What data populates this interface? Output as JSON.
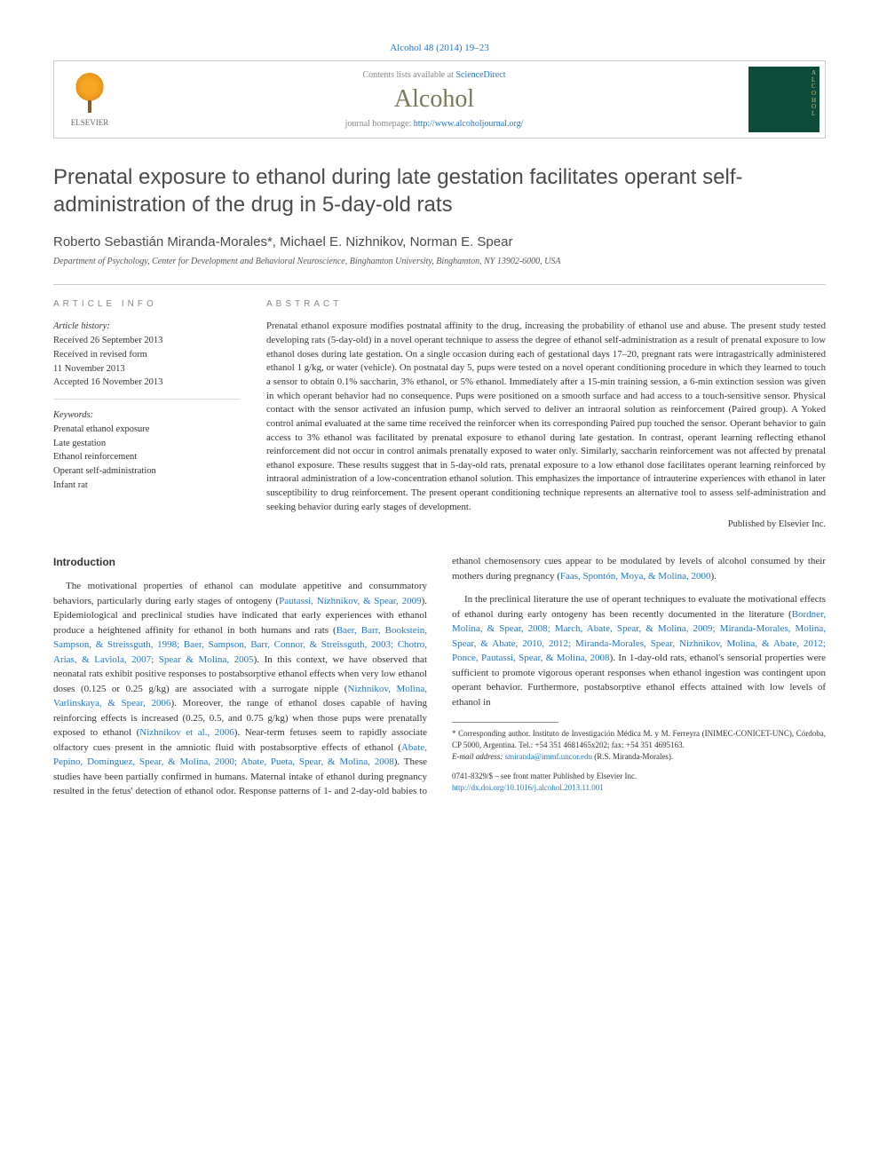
{
  "header": {
    "citation": "Alcohol 48 (2014) 19–23",
    "contents_prefix": "Contents lists available at ",
    "contents_link": "ScienceDirect",
    "journal_name": "Alcohol",
    "homepage_prefix": "journal homepage: ",
    "homepage_url": "http://www.alcoholjournal.org/",
    "publisher": "ELSEVIER",
    "cover_letters": "A\nL\nC\nO\nH\nO\nL"
  },
  "article": {
    "title": "Prenatal exposure to ethanol during late gestation facilitates operant self-administration of the drug in 5-day-old rats",
    "authors": "Roberto Sebastián Miranda-Morales*, Michael E. Nizhnikov, Norman E. Spear",
    "affiliation": "Department of Psychology, Center for Development and Behavioral Neuroscience, Binghamton University, Binghamton, NY 13902-6000, USA"
  },
  "info": {
    "section_label": "ARTICLE INFO",
    "history_label": "Article history:",
    "history": "Received 26 September 2013\nReceived in revised form\n11 November 2013\nAccepted 16 November 2013",
    "keywords_label": "Keywords:",
    "keywords": "Prenatal ethanol exposure\nLate gestation\nEthanol reinforcement\nOperant self-administration\nInfant rat"
  },
  "abstract": {
    "section_label": "ABSTRACT",
    "text": "Prenatal ethanol exposure modifies postnatal affinity to the drug, increasing the probability of ethanol use and abuse. The present study tested developing rats (5-day-old) in a novel operant technique to assess the degree of ethanol self-administration as a result of prenatal exposure to low ethanol doses during late gestation. On a single occasion during each of gestational days 17–20, pregnant rats were intragastrically administered ethanol 1 g/kg, or water (vehicle). On postnatal day 5, pups were tested on a novel operant conditioning procedure in which they learned to touch a sensor to obtain 0.1% saccharin, 3% ethanol, or 5% ethanol. Immediately after a 15-min training session, a 6-min extinction session was given in which operant behavior had no consequence. Pups were positioned on a smooth surface and had access to a touch-sensitive sensor. Physical contact with the sensor activated an infusion pump, which served to deliver an intraoral solution as reinforcement (Paired group). A Yoked control animal evaluated at the same time received the reinforcer when its corresponding Paired pup touched the sensor. Operant behavior to gain access to 3% ethanol was facilitated by prenatal exposure to ethanol during late gestation. In contrast, operant learning reflecting ethanol reinforcement did not occur in control animals prenatally exposed to water only. Similarly, saccharin reinforcement was not affected by prenatal ethanol exposure. These results suggest that in 5-day-old rats, prenatal exposure to a low ethanol dose facilitates operant learning reinforced by intraoral administration of a low-concentration ethanol solution. This emphasizes the importance of intrauterine experiences with ethanol in later susceptibility to drug reinforcement. The present operant conditioning technique represents an alternative tool to assess self-administration and seeking behavior during early stages of development.",
    "publisher_note": "Published by Elsevier Inc."
  },
  "body": {
    "intro_heading": "Introduction",
    "p1a": "The motivational properties of ethanol can modulate appetitive and consummatory behaviors, particularly during early stages of ontogeny (",
    "p1_ref1": "Pautassi, Nizhnikov, & Spear, 2009",
    "p1b": "). Epidemiological and preclinical studies have indicated that early experiences with ethanol produce a heightened affinity for ethanol in both humans and rats (",
    "p1_ref2": "Baer, Barr, Bookstein, Sampson, & Streissguth, 1998; Baer, Sampson, Barr, Connor, & Streissguth, 2003; Chotro, Arias, & Laviola, 2007; Spear & Molina, 2005",
    "p1c": "). In this context, we have observed that neonatal rats exhibit positive responses to postabsorptive ethanol effects when very low ethanol doses (0.125 or 0.25 g/kg) are associated with a surrogate nipple (",
    "p1_ref3": "Nizhnikov, Molina, Varlinskaya, & Spear, 2006",
    "p1d": "). Moreover, the range of ethanol doses capable of having reinforcing effects is increased (0.25, 0.5, and 0.75 g/kg)",
    "p2a": "when those pups were prenatally exposed to ethanol (",
    "p2_ref1": "Nizhnikov et al., 2006",
    "p2b": "). Near-term fetuses seem to rapidly associate olfactory cues present in the amniotic fluid with postabsorptive effects of ethanol (",
    "p2_ref2": "Abate, Pepino, Domínguez, Spear, & Molina, 2000; Abate, Pueta, Spear, & Molina, 2008",
    "p2c": "). These studies have been partially confirmed in humans. Maternal intake of ethanol during pregnancy resulted in the fetus' detection of ethanol odor. Response patterns of 1- and 2-day-old babies to ethanol chemosensory cues appear to be modulated by levels of alcohol consumed by their mothers during pregnancy (",
    "p2_ref3": "Faas, Spontón, Moya, & Molina, 2000",
    "p2d": ").",
    "p3a": "In the preclinical literature the use of operant techniques to evaluate the motivational effects of ethanol during early ontogeny has been recently documented in the literature (",
    "p3_ref1": "Bordner, Molina, & Spear, 2008; March, Abate, Spear, & Molina, 2009; Miranda-Morales, Molina, Spear, & Abate, 2010, 2012; Miranda-Morales, Spear, Nizhnikov, Molina, & Abate, 2012; Ponce, Pautassi, Spear, & Molina, 2008",
    "p3b": "). In 1-day-old rats, ethanol's sensorial properties were sufficient to promote vigorous operant responses when ethanol ingestion was contingent upon operant behavior. Furthermore, postabsorptive ethanol effects attained with low levels of ethanol in"
  },
  "footnotes": {
    "corr": "* Corresponding author. Instituto de Investigación Médica M. y M. Ferreyra (INIMEC-CONICET-UNC), Córdoba, CP 5000, Argentina. Tel.: +54 351 4681465x202; fax: +54 351 4695163.",
    "email_label": "E-mail address: ",
    "email": "smiranda@immf.uncor.edu",
    "email_suffix": " (R.S. Miranda-Morales)."
  },
  "footer": {
    "issn": "0741-8329/$ – see front matter Published by Elsevier Inc.",
    "doi": "http://dx.doi.org/10.1016/j.alcohol.2013.11.001"
  },
  "colors": {
    "link": "#2277cc",
    "journal_title": "#7a7a5a",
    "cover_bg": "#0d4a3a",
    "cover_text": "#d4c97a"
  }
}
